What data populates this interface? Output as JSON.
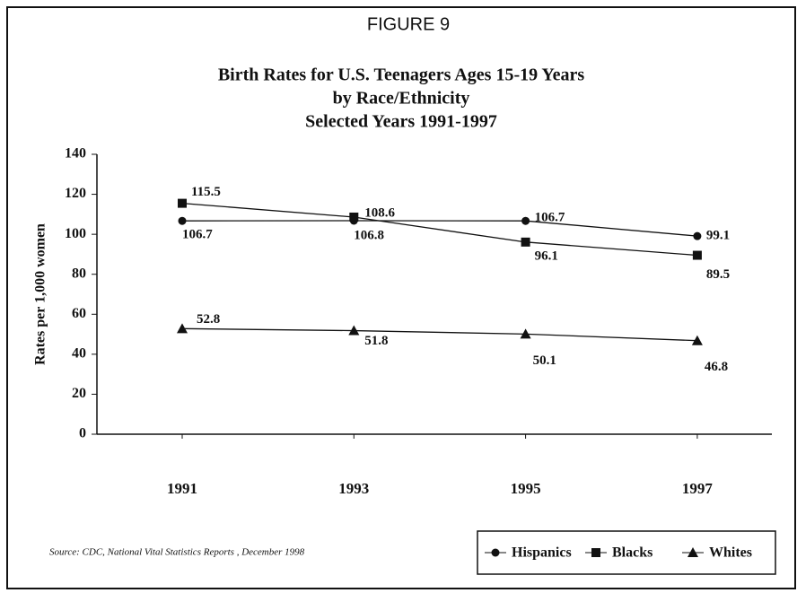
{
  "chart_data": {
    "type": "line",
    "figure_label": "FIGURE 9",
    "title": [
      "Birth Rates for U.S. Teenagers Ages 15-19 Years",
      "by Race/Ethnicity",
      "Selected Years 1991-1997"
    ],
    "ylabel": "Rates per 1,000 women",
    "source": "Source: CDC, National Vital Statistics Reports , December 1998",
    "categories": [
      "1991",
      "1993",
      "1995",
      "1997"
    ],
    "series": [
      {
        "name": "Hispanics",
        "color": "#111111",
        "marker": "circle",
        "values": [
          106.7,
          106.8,
          106.7,
          99.1
        ]
      },
      {
        "name": "Blacks",
        "color": "#111111",
        "marker": "square",
        "values": [
          115.5,
          108.6,
          96.1,
          89.5
        ]
      },
      {
        "name": "Whites",
        "color": "#111111",
        "marker": "triangle",
        "values": [
          52.8,
          51.8,
          50.1,
          46.8
        ]
      }
    ],
    "ylim": [
      0,
      140
    ],
    "yticks": [
      0,
      20,
      40,
      60,
      80,
      100,
      120,
      140
    ]
  }
}
